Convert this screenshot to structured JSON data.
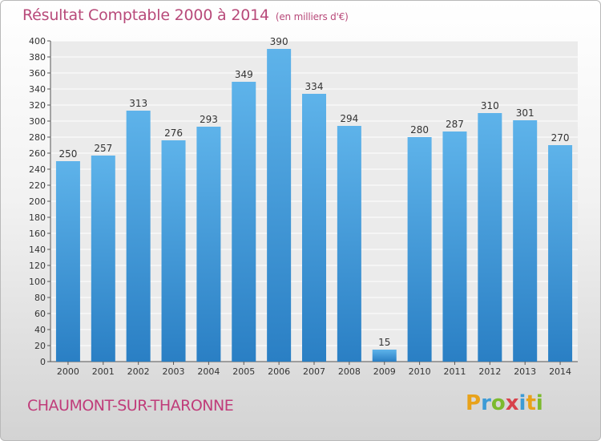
{
  "title": "Résultat Comptable 2000 à 2014",
  "unit": "(en milliers d'€)",
  "commune": "CHAUMONT-SUR-THARONNE",
  "logo": {
    "p": "P",
    "r": "r",
    "o": "o",
    "x": "x",
    "i1": "i",
    "t": "t",
    "i2": "i"
  },
  "colors": {
    "bar_top": "#5eb3ea",
    "bar_bottom": "#2a7fc4",
    "title": "#b84a7a",
    "commune": "#c03c7a"
  },
  "chart_data": {
    "type": "bar",
    "title": "Résultat Comptable 2000 à 2014",
    "xlabel": "",
    "ylabel": "(en milliers d'€)",
    "categories": [
      "2000",
      "2001",
      "2002",
      "2003",
      "2004",
      "2005",
      "2006",
      "2007",
      "2008",
      "2009",
      "2010",
      "2011",
      "2012",
      "2013",
      "2014"
    ],
    "values": [
      250,
      257,
      313,
      276,
      293,
      349,
      390,
      334,
      294,
      15,
      280,
      287,
      310,
      301,
      270
    ],
    "ylim": [
      0,
      400
    ],
    "ytick_step": 20,
    "grid": true
  }
}
